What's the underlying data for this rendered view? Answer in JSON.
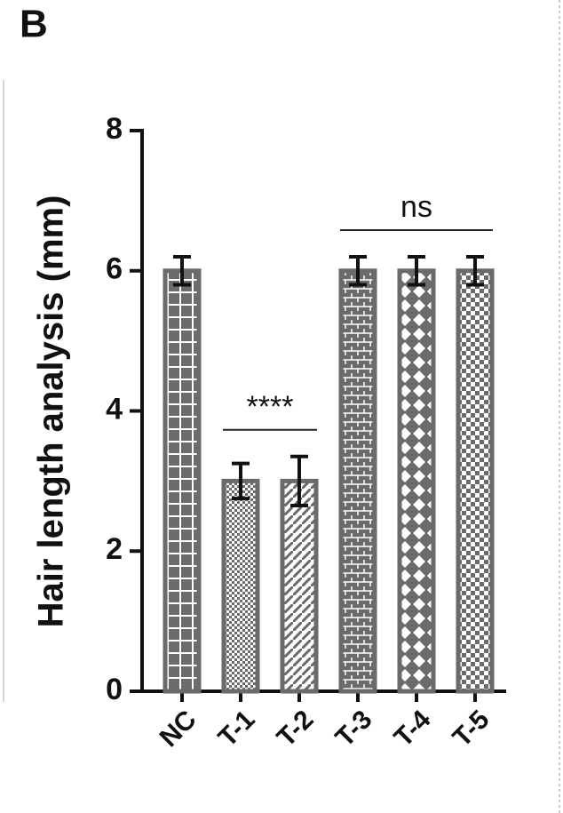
{
  "panel_label": "B",
  "chart_data": {
    "type": "bar",
    "ylabel": "Hair length analysis (mm)",
    "categories": [
      "NC",
      "T-1",
      "T-2",
      "T-3",
      "T-4",
      "T-5"
    ],
    "values": [
      6,
      3,
      3,
      6,
      6,
      6
    ],
    "errors": [
      0.2,
      0.25,
      0.35,
      0.2,
      0.2,
      0.2
    ],
    "color": "#6b6b6b",
    "ylim": [
      0,
      8
    ],
    "yticks": [
      0,
      2,
      4,
      6,
      8
    ],
    "annotations": [
      {
        "text": "****",
        "from": "T-1",
        "to": "T-2"
      },
      {
        "text": "ns",
        "from": "T-3",
        "to": "T-5"
      }
    ]
  }
}
